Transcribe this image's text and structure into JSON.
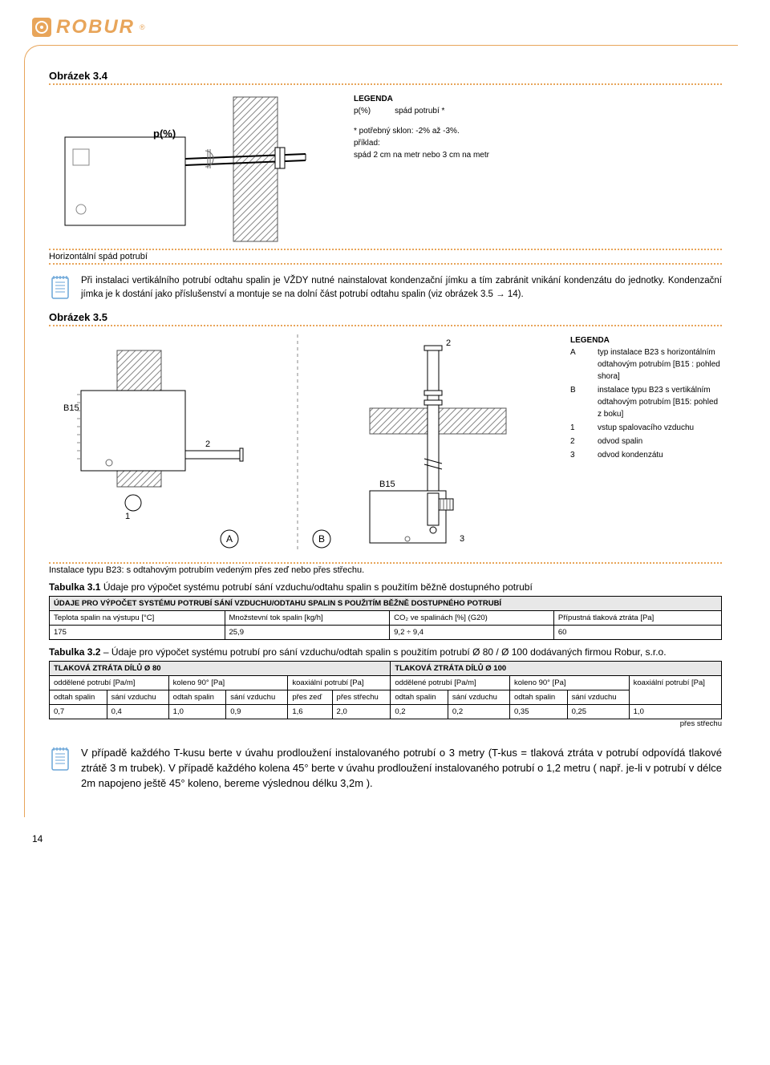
{
  "brand": "ROBUR",
  "fig34": {
    "title": "Obrázek 3.4",
    "p_label": "p(%)",
    "legend_title": "LEGENDA",
    "legend_p": "p(%)",
    "legend_p_desc": "spád potrubí *",
    "note1": "* potřebný sklon: -2% až -3%.",
    "note2_1": "příklad:",
    "note2_2": "spád  2 cm na metr nebo 3 cm  na metr",
    "caption": "Horizontální spád potrubí"
  },
  "warn1": "Při instalaci vertikálního potrubí odtahu spalin je VŽDY nutné nainstalovat kondenzační jímku a tím zabránit vnikání kondenzátu do jednotky. Kondenzační jímka je k dostání jako příslušenství a montuje se na dolní část potrubí odtahu spalin (viz obrázek 3.5 → 14).",
  "fig35": {
    "title": "Obrázek 3.5",
    "B15": "B15",
    "A": "A",
    "B": "B",
    "n1": "1",
    "n2": "2",
    "n3": "3",
    "legend_title": "LEGENDA",
    "leg": [
      [
        "A",
        "typ instalace B23 s horizontálním odtahovým potrubím [B15 : pohled shora]"
      ],
      [
        "B",
        "instalace typu B23 s vertikálním odtahovým potrubím [B15: pohled z boku]"
      ],
      [
        "1",
        "vstup spalovacího vzduchu"
      ],
      [
        "2",
        "odvod spalin"
      ],
      [
        "3",
        "odvod kondenzátu"
      ]
    ],
    "caption": "Instalace typu B23: s odtahovým potrubím vedeným přes zeď nebo přes střechu."
  },
  "tab31": {
    "title_b": "Tabulka 3.1",
    "title_rest": " Údaje pro výpočet systému potrubí sání vzduchu/odtahu spalin s použitím běžně dostupného potrubí",
    "header": "ÚDAJE PRO VÝPOČET SYSTÉMU POTRUBÍ SÁNÍ VZDUCHU/ODTAHU SPALIN S POUŽITÍM BĚŽNĚ DOSTUPNÉHO POTRUBÍ",
    "cols": [
      "Teplota spalin na výstupu [°C]",
      "Množstevní tok spalin [kg/h]",
      "CO₂ ve spalinách [%] (G20)",
      "Přípustná tlaková ztráta [Pa]"
    ],
    "row": [
      "175",
      "25,9",
      "9,2 ÷ 9,4",
      "60"
    ]
  },
  "tab32": {
    "title_b": "Tabulka 3.2",
    "title_rest": " – Údaje pro výpočet systému potrubí pro sání vzduchu/odtah spalin s použitím potrubí Ø 80 / Ø 100 dodávaných firmou Robur, s.r.o.",
    "h80": "TLAKOVÁ ZTRÁTA DÍLŮ Ø 80",
    "h100": "TLAKOVÁ ZTRÁTA DÍLŮ Ø 100",
    "c_odd": "oddělené potrubí [Pa/m]",
    "c_kol": "koleno 90° [Pa]",
    "c_koax": "koaxiální potrubí [Pa]",
    "c_odtah": "odtah spalin",
    "c_sani": "sání vzduchu",
    "c_zed": "přes zeď",
    "c_strechu": "přes střechu",
    "row": [
      "0,7",
      "0,4",
      "1,0",
      "0,9",
      "1,6",
      "2,0",
      "0,2",
      "0,2",
      "0,35",
      "0,25",
      "1,0"
    ]
  },
  "warn2": "V případě každého T-kusu berte v úvahu prodloužení instalovaného potrubí o 3 metry (T-kus = tlaková ztráta v potrubí odpovídá tlakové ztrátě 3 m trubek). V případě každého kolena 45° berte v úvahu prodloužení instalovaného potrubí o 1,2 metru ( např. je-li v potrubí v délce 2m napojeno ještě 45° koleno, bereme výslednou délku 3,2m ).",
  "page": "14",
  "colors": {
    "accent": "#e8a55a",
    "hatch": "#999",
    "text": "#000"
  }
}
